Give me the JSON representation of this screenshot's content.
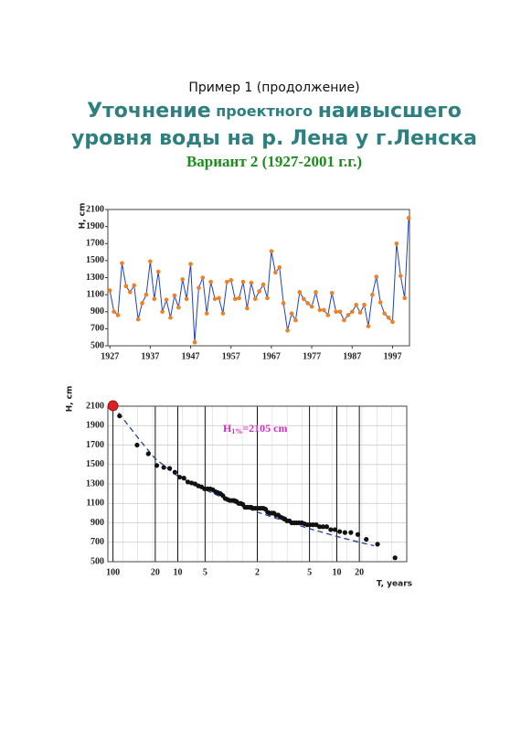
{
  "header": {
    "label": "Пример 1 (продолжение)",
    "title_line1": [
      "Уточнение",
      "проектного",
      "наивысшего"
    ],
    "title_line2": "уровня воды на р. Лена у г.Ленска",
    "subtitle": "Вариант 2 (1927-2001 г.г.)"
  },
  "chart_data": [
    {
      "type": "line",
      "y_label": "H, cm",
      "xlim": [
        1926.5,
        2001.2
      ],
      "ylim": [
        500,
        2100
      ],
      "xticks": [
        1927,
        1937,
        1947,
        1957,
        1967,
        1977,
        1987,
        1997
      ],
      "yticks": [
        500,
        700,
        900,
        1100,
        1300,
        1500,
        1700,
        1900,
        2100
      ],
      "grid": false,
      "series": [
        {
          "color": "#2040c0",
          "marker_color": "#f08020",
          "x": [
            1927,
            1928,
            1929,
            1930,
            1931,
            1932,
            1933,
            1934,
            1935,
            1936,
            1937,
            1938,
            1939,
            1940,
            1941,
            1942,
            1943,
            1944,
            1945,
            1946,
            1947,
            1948,
            1949,
            1950,
            1951,
            1952,
            1953,
            1954,
            1955,
            1956,
            1957,
            1958,
            1959,
            1960,
            1961,
            1962,
            1963,
            1964,
            1965,
            1966,
            1967,
            1968,
            1969,
            1970,
            1971,
            1972,
            1973,
            1974,
            1975,
            1976,
            1977,
            1978,
            1979,
            1980,
            1981,
            1982,
            1983,
            1984,
            1985,
            1986,
            1987,
            1988,
            1989,
            1990,
            1991,
            1992,
            1993,
            1994,
            1995,
            1996,
            1997,
            1998,
            1999,
            2000,
            2001
          ],
          "values": [
            1150,
            900,
            860,
            1470,
            1200,
            1130,
            1210,
            810,
            1000,
            1100,
            1490,
            1050,
            1370,
            900,
            1040,
            830,
            1090,
            950,
            1280,
            1050,
            1460,
            540,
            1180,
            1300,
            880,
            1250,
            1050,
            1060,
            880,
            1250,
            1270,
            1050,
            1060,
            1250,
            940,
            1240,
            1050,
            1140,
            1220,
            1060,
            1610,
            1360,
            1420,
            1000,
            680,
            880,
            800,
            1130,
            1050,
            1000,
            960,
            1130,
            920,
            920,
            860,
            1120,
            900,
            900,
            800,
            860,
            900,
            980,
            890,
            980,
            730,
            1100,
            1310,
            1010,
            880,
            830,
            780,
            1700,
            1320,
            1060,
            2000
          ]
        }
      ]
    },
    {
      "type": "scatter",
      "y_label": "H, cm",
      "x_label": "T, years",
      "xscale": "probability",
      "xlim": [
        0.8,
        99.2
      ],
      "ylim": [
        500,
        2100
      ],
      "grid": true,
      "xtick_lines": true,
      "xticks": [
        {
          "value": 1,
          "label": "100"
        },
        {
          "value": 5,
          "label": "20"
        },
        {
          "value": 10,
          "label": "10"
        },
        {
          "value": 20,
          "label": "5"
        },
        {
          "value": 50,
          "label": "2"
        },
        {
          "value": 80,
          "label": "5"
        },
        {
          "value": 90,
          "label": "10"
        },
        {
          "value": 95,
          "label": "20"
        }
      ],
      "yticks": [
        500,
        700,
        900,
        1100,
        1300,
        1500,
        1700,
        1900,
        2100
      ],
      "annotation": {
        "parts": [
          "H",
          "1%",
          "=2105 cm"
        ],
        "color": "#d030c0"
      },
      "series": [
        {
          "mark": "dashed-line",
          "color": "#2040a0",
          "x": [
            1,
            3,
            5,
            10,
            20,
            35,
            50,
            65,
            80,
            90,
            95,
            97
          ],
          "values": [
            2105,
            1740,
            1560,
            1380,
            1240,
            1110,
            1010,
            930,
            840,
            760,
            700,
            665
          ]
        },
        {
          "mark": "point",
          "color": "#111111",
          "x": [
            1.32,
            2.63,
            3.95,
            5.26,
            6.58,
            7.89,
            9.21,
            10.53,
            11.84,
            13.16,
            14.47,
            15.79,
            17.11,
            18.42,
            19.74,
            21.05,
            22.37,
            23.68,
            25,
            26.32,
            27.63,
            28.95,
            30.26,
            31.58,
            32.89,
            34.21,
            35.53,
            36.84,
            38.16,
            39.47,
            40.79,
            42.11,
            43.42,
            44.74,
            46.05,
            47.37,
            48.68,
            50,
            51.32,
            52.63,
            53.95,
            55.26,
            56.58,
            57.89,
            59.21,
            60.53,
            61.84,
            63.16,
            64.47,
            65.79,
            67.11,
            68.42,
            69.74,
            71.05,
            72.37,
            73.68,
            75,
            76.32,
            77.63,
            78.95,
            80.26,
            81.58,
            82.89,
            84.21,
            85.53,
            86.84,
            88.16,
            89.47,
            90.79,
            92.11,
            93.42,
            94.74,
            96.05,
            97.37,
            98.68
          ],
          "values": [
            2000,
            1700,
            1610,
            1490,
            1470,
            1460,
            1420,
            1370,
            1360,
            1320,
            1310,
            1300,
            1280,
            1270,
            1250,
            1250,
            1250,
            1240,
            1220,
            1210,
            1200,
            1180,
            1150,
            1140,
            1130,
            1130,
            1130,
            1120,
            1100,
            1100,
            1090,
            1060,
            1060,
            1060,
            1060,
            1050,
            1050,
            1050,
            1050,
            1050,
            1050,
            1040,
            1010,
            1000,
            1000,
            1000,
            980,
            980,
            960,
            950,
            940,
            920,
            920,
            900,
            900,
            900,
            900,
            900,
            890,
            880,
            880,
            880,
            880,
            860,
            860,
            860,
            830,
            830,
            810,
            800,
            800,
            780,
            730,
            680,
            540
          ]
        },
        {
          "mark": "large-point",
          "color": "#e02020",
          "x": [
            1
          ],
          "values": [
            2105
          ]
        }
      ]
    }
  ]
}
